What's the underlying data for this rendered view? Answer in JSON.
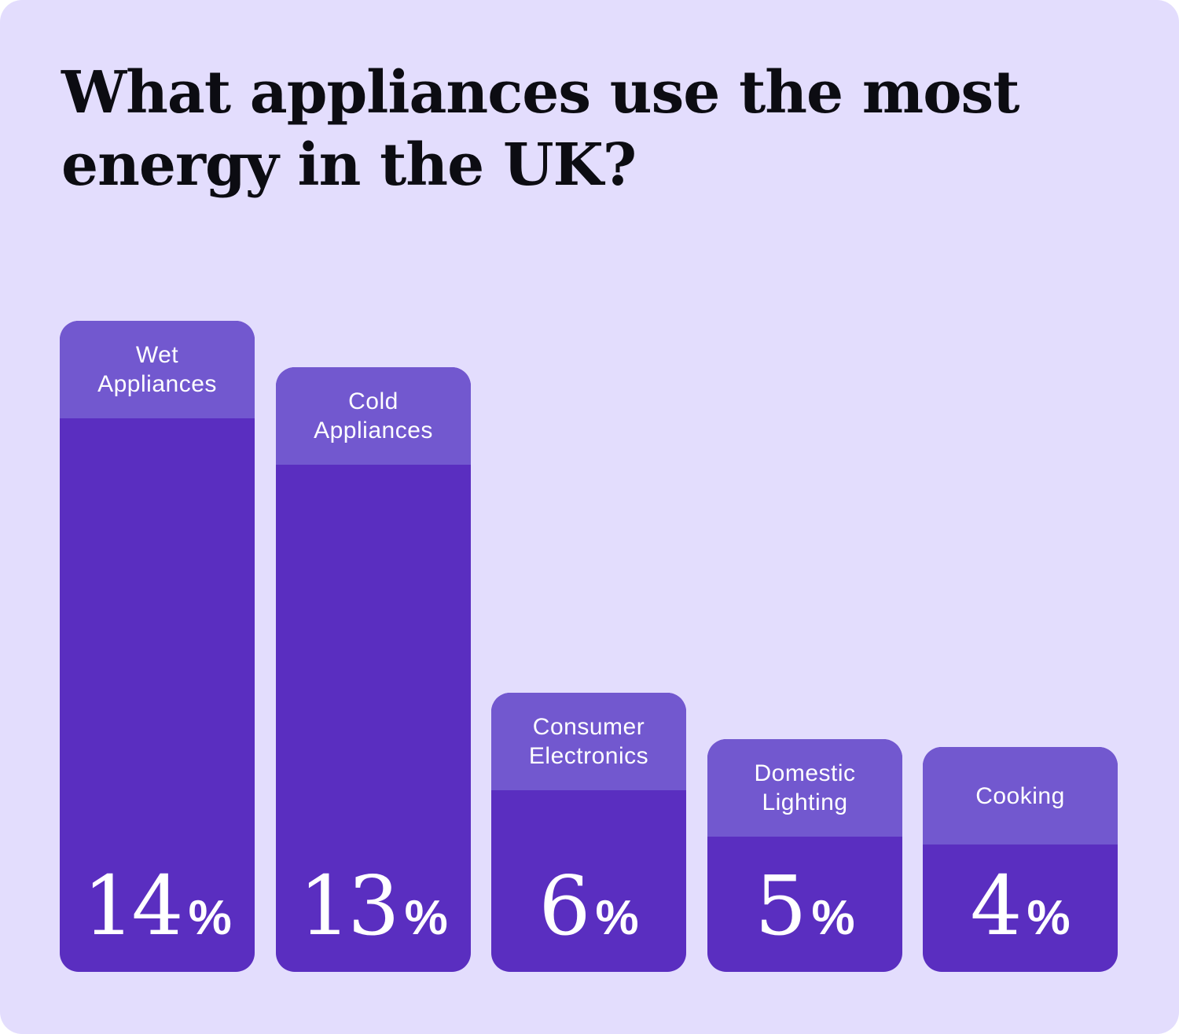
{
  "chart_data": {
    "type": "bar",
    "title": "What appliances use the most energy in the UK?",
    "categories": [
      "Wet Appliances",
      "Cold Appliances",
      "Consumer Electronics",
      "Domestic Lighting",
      "Cooking"
    ],
    "label_lines": [
      [
        "Wet",
        "Appliances"
      ],
      [
        "Cold",
        "Appliances"
      ],
      [
        "Consumer",
        "Electronics"
      ],
      [
        "Domestic",
        "Lighting"
      ],
      [
        "Cooking"
      ]
    ],
    "values": [
      14,
      13,
      6,
      5,
      4
    ],
    "value_labels": [
      "14",
      "13",
      "6",
      "5",
      "4"
    ],
    "unit": "%",
    "ylim": [
      0,
      14
    ],
    "grid": false,
    "legend": "none",
    "colors": {
      "background": "#e3ddfd",
      "bar": "#5a2ec0",
      "bar_label_band": "#7258cf",
      "title_text": "#0c0c12",
      "bar_text": "#ffffff"
    }
  }
}
